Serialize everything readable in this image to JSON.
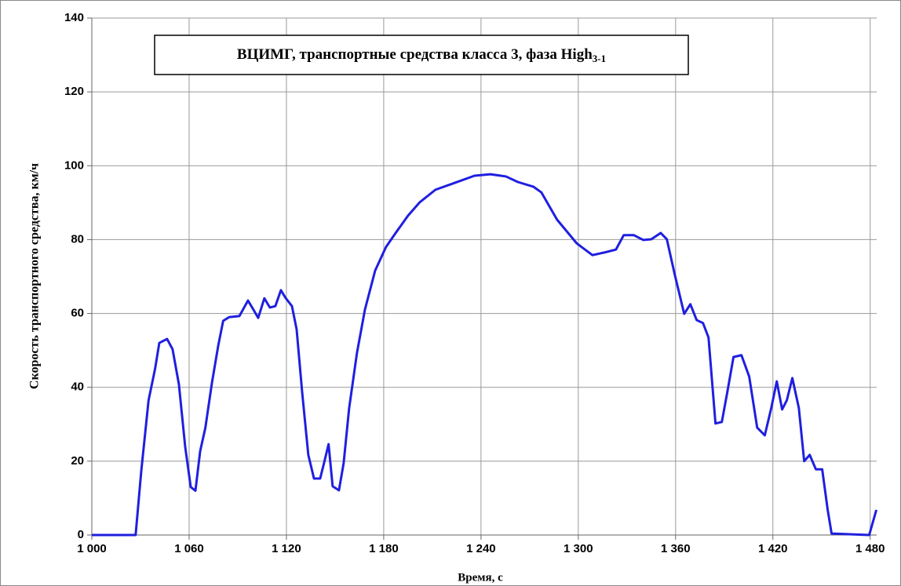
{
  "chart_data": {
    "type": "line",
    "title": "ВЦИМГ, транспортные средства класса 3, фаза High",
    "title_subscript": "3-1",
    "xlabel": "Время, с",
    "ylabel": "Скорость транспортного средства, км/ч",
    "xlim": [
      1000,
      1484
    ],
    "ylim": [
      0,
      140
    ],
    "xticks": [
      {
        "value": 1000,
        "label": "1 000"
      },
      {
        "value": 1060,
        "label": "1 060"
      },
      {
        "value": 1120,
        "label": "1 120"
      },
      {
        "value": 1180,
        "label": "1 180"
      },
      {
        "value": 1240,
        "label": "1 240"
      },
      {
        "value": 1300,
        "label": "1 300"
      },
      {
        "value": 1360,
        "label": "1 360"
      },
      {
        "value": 1420,
        "label": "1 420"
      },
      {
        "value": 1480,
        "label": "1 480"
      }
    ],
    "yticks": [
      0,
      20,
      40,
      60,
      80,
      100,
      120,
      140
    ],
    "grid": true,
    "series": [
      {
        "color": "#1f1fe0",
        "x": [
          1000,
          1027,
          1030.5,
          1035,
          1039,
          1041.6,
          1046.4,
          1049.8,
          1053.7,
          1057.6,
          1061,
          1063.9,
          1066.8,
          1070,
          1074,
          1078,
          1081,
          1084.7,
          1091,
          1096.3,
          1099.7,
          1102.6,
          1106.4,
          1109.8,
          1113.2,
          1116.6,
          1119.5,
          1123.4,
          1126.3,
          1129.7,
          1133.5,
          1137,
          1140.8,
          1143.2,
          1146,
          1148.5,
          1152.4,
          1155.3,
          1158.7,
          1163.5,
          1168.4,
          1174.7,
          1181.4,
          1187.7,
          1195,
          1202.2,
          1211.9,
          1224,
          1236,
          1245.8,
          1255.4,
          1262.7,
          1272.4,
          1277.2,
          1286.9,
          1299,
          1308.7,
          1316,
          1323.2,
          1328,
          1334.3,
          1340.1,
          1345,
          1350.8,
          1354.6,
          1359.5,
          1365.3,
          1369.1,
          1373,
          1376.9,
          1380.3,
          1384.6,
          1388.5,
          1391.9,
          1395.7,
          1400.6,
          1405.4,
          1410.3,
          1415,
          1419,
          1422.4,
          1425.7,
          1428.6,
          1432,
          1436,
          1439.3,
          1442.7,
          1446.5,
          1450.4,
          1453.8,
          1456.2,
          1479.4,
          1483.8
        ],
        "values": [
          0,
          0,
          17.4,
          36.5,
          45,
          52,
          53.1,
          50.3,
          40.8,
          23.8,
          13,
          12,
          22.7,
          29,
          41,
          51.4,
          58,
          59,
          59.3,
          63.5,
          61,
          58.8,
          64.1,
          61.6,
          62,
          66.3,
          64.2,
          62,
          55.7,
          38.7,
          21.7,
          15.3,
          15.3,
          19.5,
          24.6,
          13.2,
          12.1,
          19.5,
          34.4,
          49.3,
          61,
          71.6,
          78,
          82,
          86.5,
          90.1,
          93.5,
          95.4,
          97.3,
          97.7,
          97.1,
          95.6,
          94.3,
          92.8,
          85.4,
          79,
          75.8,
          76.5,
          77.3,
          81.2,
          81.2,
          79.9,
          80.1,
          81.8,
          80.1,
          70.5,
          59.9,
          62.5,
          58.2,
          57.4,
          53.5,
          30.2,
          30.6,
          38.7,
          48.2,
          48.7,
          42.9,
          29.1,
          27,
          34.4,
          41.6,
          34,
          36.5,
          42.5,
          34.4,
          20,
          21.7,
          17.8,
          17.8,
          6.8,
          0.4,
          0,
          6.8
        ]
      }
    ]
  }
}
